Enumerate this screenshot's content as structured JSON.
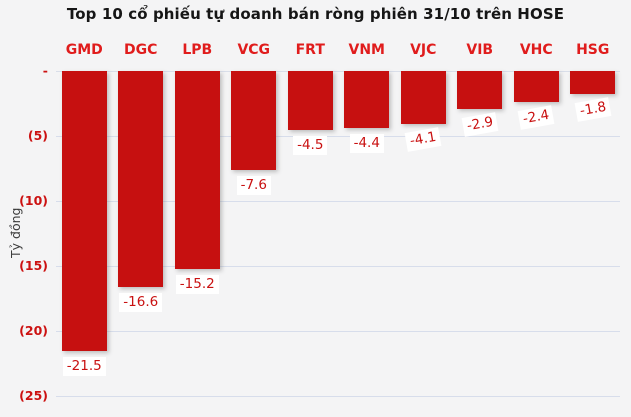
{
  "title": "Top 10 cổ phiếu tự doanh bán ròng phiên 31/10 trên HOSE",
  "y_axis_title": "Tỷ đồng",
  "colors": {
    "background": "#F4F4F5",
    "title_text": "#161616",
    "axis_title_text": "#3C3C3C",
    "bar": "#C61010",
    "category_text": "#E01C1C",
    "value_text": "#C91111",
    "tick_text": "#CC1111",
    "gridline": "#D7DDEB",
    "zero_line": "#D9DEE9",
    "label_box_bg": "#FFFFFF"
  },
  "chart_data": {
    "type": "bar",
    "title": "Top 10 cổ phiếu tự doanh bán ròng phiên 31/10 trên HOSE",
    "xlabel": "",
    "ylabel": "Tỷ đồng",
    "categories": [
      "GMD",
      "DGC",
      "LPB",
      "VCG",
      "FRT",
      "VNM",
      "VJC",
      "VIB",
      "VHC",
      "HSG"
    ],
    "values": [
      -21.5,
      -16.6,
      -15.2,
      -7.6,
      -4.5,
      -4.4,
      -4.1,
      -2.9,
      -2.4,
      -1.8
    ],
    "data_labels": [
      "-21.5",
      "-16.6",
      "-15.2",
      "-7.6",
      "-4.5",
      "-4.4",
      "-4.1",
      "-2.9",
      "-2.4",
      "-1.8"
    ],
    "unit": "Tỷ đồng",
    "ylim": [
      -25,
      0
    ],
    "y_ticks": [
      {
        "label": "-",
        "value": 0
      },
      {
        "label": "(5)",
        "value": -5
      },
      {
        "label": "(10)",
        "value": -10
      },
      {
        "label": "(15)",
        "value": -15
      },
      {
        "label": "(20)",
        "value": -20
      },
      {
        "label": "(25)",
        "value": -25
      }
    ],
    "grid": true,
    "legend": false,
    "category_labels_position": "top",
    "value_labels_position": "below-bar"
  }
}
